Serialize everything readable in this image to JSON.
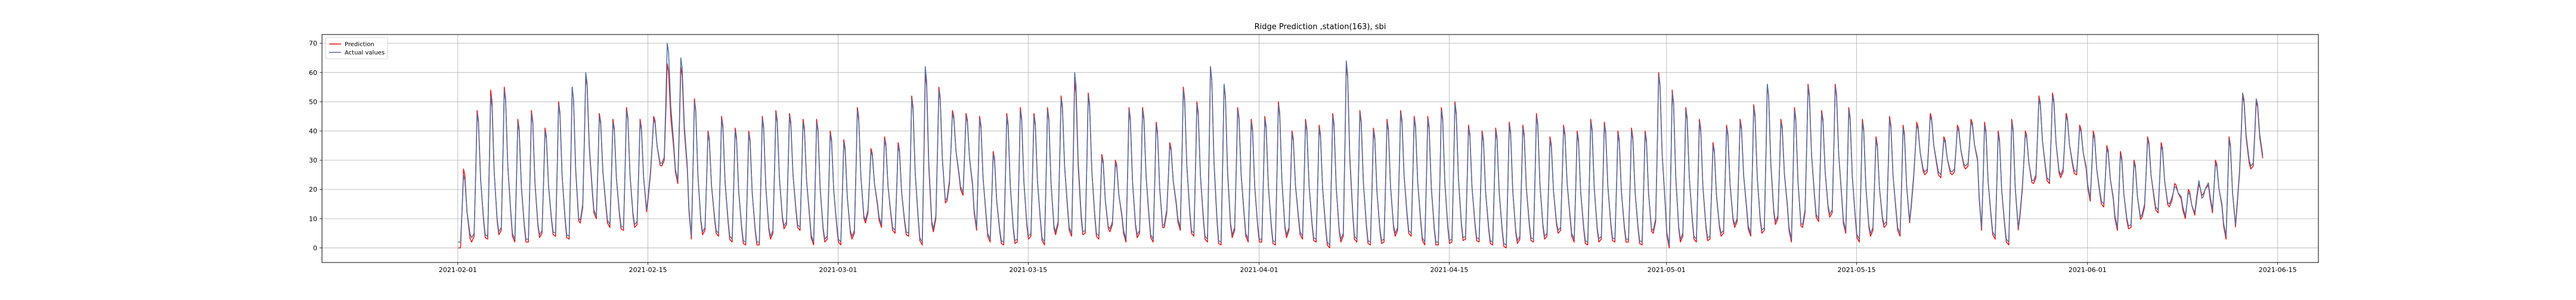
{
  "chart_data": {
    "type": "line",
    "title": "Ridge Prediction ,station(163), sbi",
    "xlabel": "",
    "ylabel": "",
    "x_range": [
      "2021-01-22",
      "2021-06-18"
    ],
    "ylim": [
      -5,
      73
    ],
    "x_ticks": [
      "2021-02-01",
      "2021-02-15",
      "2021-03-01",
      "2021-03-15",
      "2021-04-01",
      "2021-04-15",
      "2021-05-01",
      "2021-05-15",
      "2021-06-01",
      "2021-06-15"
    ],
    "y_ticks": [
      0,
      10,
      20,
      30,
      40,
      50,
      60,
      70
    ],
    "grid": true,
    "legend_position": "top-left",
    "data_start": "2021-02-01",
    "data_end": "2021-06-10",
    "daily_cycle": "each day the series rises from a low near the daily minimum to the daily peak and falls back",
    "series": [
      {
        "name": "Prediction",
        "color": "#ee1111",
        "daily_low": [
          0,
          4,
          3,
          6,
          2,
          2,
          5,
          4,
          3,
          14,
          10,
          7,
          6,
          8,
          26,
          30,
          22,
          3,
          6,
          4,
          2,
          1,
          1,
          5,
          8,
          6,
          1,
          3,
          1,
          5,
          12,
          7,
          5,
          4,
          1,
          10,
          22,
          18,
          6,
          2,
          1,
          2,
          4,
          1,
          8,
          4,
          5,
          3,
          8,
          2,
          5,
          2,
          12,
          6,
          4,
          2,
          1,
          6,
          2,
          2,
          1,
          6,
          3,
          2,
          0,
          4,
          2,
          1,
          2,
          6,
          4,
          1,
          1,
          2,
          3,
          2,
          1,
          0,
          3,
          2,
          4,
          6,
          2,
          1,
          3,
          2,
          2,
          1,
          9,
          0,
          4,
          2,
          3,
          5,
          9,
          4,
          6,
          10,
          2,
          12,
          9,
          12,
          5,
          2,
          6,
          8,
          4,
          24,
          26,
          24,
          26,
          28,
          6,
          3,
          1,
          20,
          24,
          22,
          26,
          25,
          16,
          14,
          6,
          7,
          14,
          12,
          16,
          10,
          22,
          12,
          3,
          26,
          28
        ],
        "daily_high": [
          27,
          47,
          54,
          55,
          44,
          47,
          41,
          50,
          55,
          59,
          46,
          44,
          48,
          44,
          45,
          63,
          62,
          51,
          40,
          45,
          41,
          40,
          45,
          47,
          46,
          44,
          44,
          40,
          37,
          48,
          34,
          38,
          36,
          52,
          60,
          55,
          47,
          46,
          45,
          33,
          46,
          48,
          46,
          48,
          52,
          57,
          53,
          32,
          30,
          48,
          48,
          43,
          36,
          55,
          50,
          62,
          56,
          48,
          44,
          45,
          50,
          40,
          44,
          42,
          46,
          63,
          47,
          41,
          44,
          47,
          45,
          45,
          48,
          50,
          42,
          40,
          41,
          43,
          42,
          46,
          38,
          42,
          40,
          44,
          43,
          40,
          41,
          40,
          60,
          54,
          48,
          44,
          36,
          42,
          44,
          49,
          56,
          44,
          48,
          56,
          47,
          56,
          48,
          44,
          38,
          45,
          42,
          43,
          46,
          38,
          42,
          44,
          43,
          40,
          44,
          40,
          52,
          53,
          46,
          42,
          40,
          35,
          33,
          30,
          38,
          36,
          22,
          20,
          18,
          30,
          38,
          52,
          50
        ]
      },
      {
        "name": "Actual values",
        "color": "#4f6fa6",
        "daily_low": [
          2,
          5,
          4,
          7,
          3,
          3,
          6,
          5,
          4,
          15,
          11,
          8,
          7,
          9,
          27,
          31,
          23,
          4,
          7,
          5,
          3,
          2,
          2,
          6,
          9,
          7,
          2,
          4,
          2,
          6,
          13,
          8,
          6,
          5,
          2,
          11,
          23,
          19,
          7,
          3,
          2,
          3,
          5,
          2,
          9,
          5,
          6,
          4,
          9,
          3,
          6,
          3,
          13,
          7,
          5,
          3,
          2,
          7,
          3,
          3,
          2,
          7,
          4,
          3,
          1,
          5,
          3,
          2,
          3,
          7,
          5,
          2,
          2,
          3,
          4,
          3,
          2,
          1,
          4,
          3,
          5,
          7,
          3,
          2,
          4,
          3,
          3,
          2,
          10,
          1,
          5,
          3,
          4,
          6,
          10,
          5,
          7,
          11,
          3,
          13,
          10,
          13,
          6,
          3,
          7,
          9,
          5,
          25,
          27,
          25,
          27,
          29,
          7,
          4,
          2,
          21,
          25,
          23,
          27,
          26,
          17,
          15,
          7,
          8,
          15,
          13,
          17,
          11,
          23,
          13,
          4,
          27,
          29
        ],
        "daily_high": [
          25,
          46,
          52,
          54,
          43,
          46,
          40,
          49,
          55,
          60,
          45,
          43,
          47,
          43,
          44,
          70,
          65,
          50,
          39,
          44,
          40,
          39,
          44,
          46,
          45,
          43,
          43,
          39,
          36,
          47,
          33,
          37,
          35,
          51,
          62,
          54,
          46,
          45,
          44,
          32,
          45,
          47,
          45,
          47,
          51,
          60,
          52,
          31,
          29,
          47,
          47,
          42,
          35,
          54,
          49,
          62,
          56,
          47,
          43,
          44,
          49,
          39,
          43,
          41,
          45,
          64,
          46,
          40,
          43,
          46,
          44,
          44,
          47,
          49,
          41,
          39,
          40,
          42,
          41,
          45,
          37,
          41,
          39,
          43,
          42,
          39,
          40,
          39,
          59,
          53,
          47,
          43,
          35,
          41,
          43,
          48,
          56,
          43,
          47,
          55,
          46,
          55,
          47,
          43,
          37,
          44,
          41,
          42,
          45,
          37,
          41,
          43,
          42,
          39,
          43,
          39,
          51,
          52,
          45,
          41,
          39,
          34,
          32,
          29,
          37,
          35,
          21,
          19,
          17,
          29,
          37,
          53,
          51
        ]
      }
    ]
  }
}
